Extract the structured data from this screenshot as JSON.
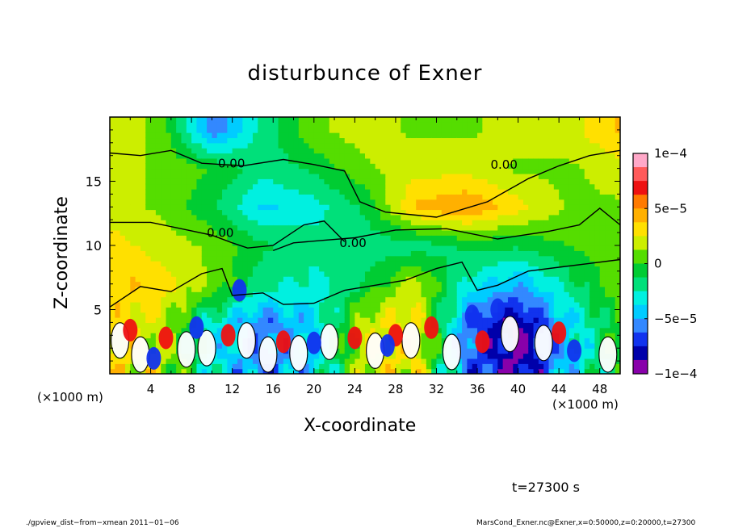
{
  "chart_data": {
    "type": "heatmap",
    "title": "disturbunce of Exner",
    "xlabel": "X-coordinate",
    "ylabel": "Z-coordinate",
    "x_unit_label": "(×1000 m)",
    "x_ticks": [
      4,
      8,
      12,
      16,
      20,
      24,
      28,
      32,
      36,
      40,
      44,
      48
    ],
    "y_ticks": [
      5,
      10,
      15
    ],
    "xlim": [
      0,
      50
    ],
    "ylim": [
      0,
      20
    ],
    "colorbar": {
      "range": [
        -0.0001,
        0.0001
      ],
      "tick_values": [
        0.0001,
        5e-05,
        0,
        -5e-05,
        -0.0001
      ],
      "tick_labels": [
        "1e−4",
        "5e−5",
        "0",
        "−5e−5",
        "−1e−4"
      ],
      "colors": [
        "#ffa8c8",
        "#ff5a5a",
        "#ee1111",
        "#ff7a00",
        "#ffb000",
        "#ffe000",
        "#ccee00",
        "#55dd00",
        "#00cc33",
        "#00e07a",
        "#00f0e0",
        "#00ccff",
        "#3388ff",
        "#1133ee",
        "#0000aa",
        "#8800aa"
      ]
    },
    "contour_labels": [
      "0.00",
      "0.00",
      "0.00",
      "0.00"
    ],
    "time_label": "t=27300 s",
    "footer_left": "./gpview_dist−from−xmean  2011−01−06",
    "footer_right": "MarsCond_Exner.nc@Exner,x=0:50000,z=0:20000,t=27300",
    "field": {
      "x_knots": [
        0,
        5,
        10,
        15,
        20,
        25,
        30,
        35,
        40,
        45,
        50
      ],
      "z_knots": [
        19,
        16,
        13,
        10,
        7,
        4
      ],
      "values": [
        [
          2e-05,
          1e-05,
          -6e-05,
          -2e-05,
          1e-05,
          2e-05,
          1e-05,
          1e-05,
          2e-05,
          2e-05,
          4e-05
        ],
        [
          2e-05,
          1e-05,
          0,
          -2e-05,
          -1e-05,
          1e-05,
          2e-05,
          2e-05,
          1e-05,
          1e-05,
          2e-05
        ],
        [
          2e-05,
          1e-05,
          -1e-05,
          -4e-05,
          -3e-05,
          -1e-05,
          4e-05,
          5e-05,
          3e-05,
          1e-05,
          1e-05
        ],
        [
          3e-05,
          2e-05,
          1e-05,
          -1e-05,
          -2e-05,
          -2e-05,
          -2e-05,
          -1e-05,
          -1e-05,
          0,
          1e-05
        ],
        [
          4e-05,
          3e-05,
          1e-05,
          -2e-05,
          -3e-05,
          -1e-05,
          2e-05,
          -3e-05,
          -5e-05,
          -2e-05,
          1e-05
        ],
        [
          3e-05,
          2e-05,
          -3e-05,
          -6e-05,
          -4e-05,
          2e-05,
          3e-05,
          -6e-05,
          -9e-05,
          -4e-05,
          0
        ]
      ]
    }
  }
}
